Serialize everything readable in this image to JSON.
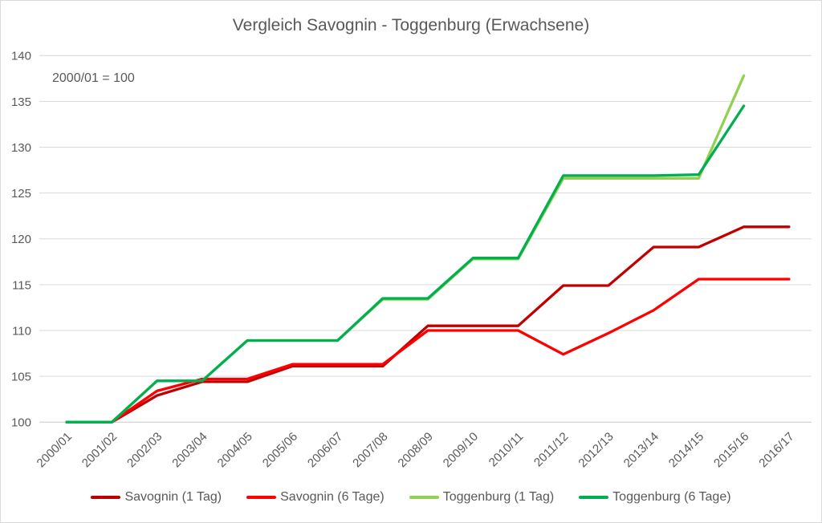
{
  "chart_data": {
    "type": "line",
    "title": "Vergleich Savognin - Toggenburg (Erwachsene)",
    "annotation": "2000/01 = 100",
    "categories": [
      "2000/01",
      "2001/02",
      "2002/03",
      "2003/04",
      "2004/05",
      "2005/06",
      "2006/07",
      "2007/08",
      "2008/09",
      "2009/10",
      "2010/11",
      "2011/12",
      "2012/13",
      "2013/14",
      "2014/15",
      "2015/16",
      "2016/17"
    ],
    "series": [
      {
        "name": "Savognin (1 Tag)",
        "color": "#C00000",
        "values": [
          100,
          100,
          102.9,
          104.4,
          104.4,
          106.1,
          106.1,
          106.1,
          110.5,
          110.5,
          110.5,
          114.9,
          114.9,
          119.1,
          119.1,
          121.3,
          121.3
        ]
      },
      {
        "name": "Savognin (6 Tage)",
        "color": "#FF0000",
        "values": [
          100,
          100,
          103.4,
          104.7,
          104.7,
          106.3,
          106.3,
          106.3,
          110.0,
          110.0,
          110.0,
          107.4,
          109.7,
          112.2,
          115.6,
          115.6,
          115.6
        ]
      },
      {
        "name": "Toggenburg (1 Tag)",
        "color": "#92D050",
        "values": [
          100,
          100,
          104.5,
          104.5,
          108.9,
          108.9,
          108.9,
          113.4,
          113.4,
          117.8,
          117.8,
          126.6,
          126.6,
          126.6,
          126.6,
          137.8,
          null
        ]
      },
      {
        "name": "Toggenburg (6 Tage)",
        "color": "#00B050",
        "values": [
          100,
          100,
          104.5,
          104.5,
          108.9,
          108.9,
          108.9,
          113.5,
          113.5,
          117.9,
          117.9,
          126.9,
          126.9,
          126.9,
          127.0,
          134.5,
          null
        ]
      }
    ],
    "ylim": [
      100,
      140
    ],
    "yticks": [
      100,
      105,
      110,
      115,
      120,
      125,
      130,
      135,
      140
    ],
    "grid": true,
    "legend_position": "bottom",
    "colors": {
      "text": "#595959",
      "gridline": "#D9D9D9",
      "axis": "#C8C8C8",
      "background": "#FFFFFF",
      "border": "#D9D9D9"
    }
  }
}
